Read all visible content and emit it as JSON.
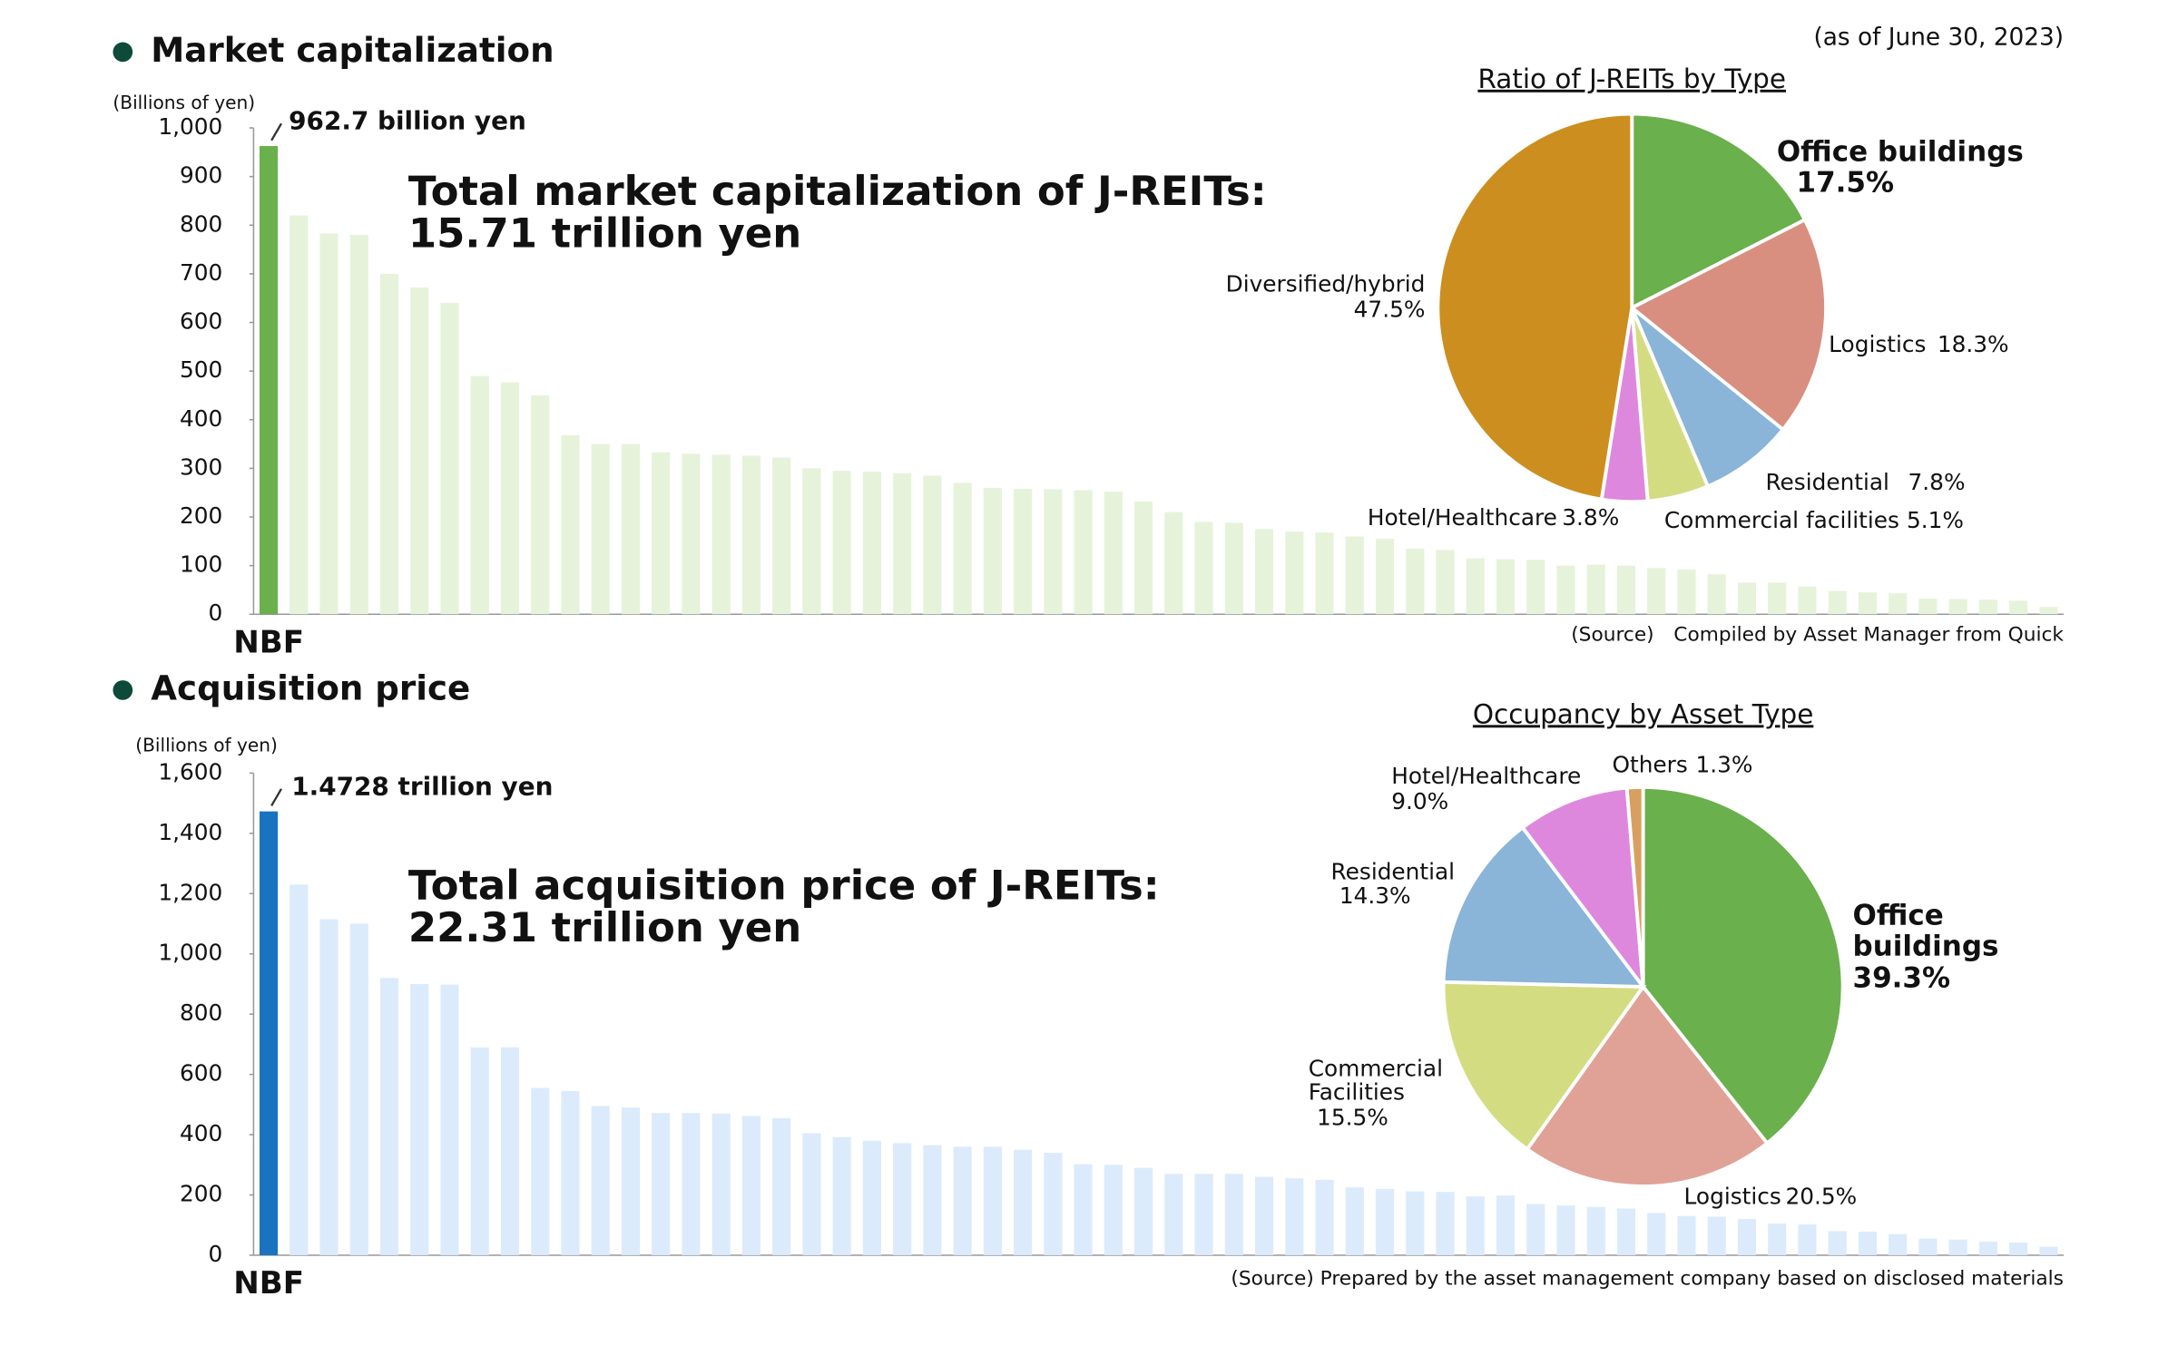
{
  "date": "(as of June 30, 2023)",
  "chart_data": [
    {
      "type": "bar",
      "title": "Market capitalization",
      "ylabel": "(Billions of yen)",
      "annotation": [
        "Total market capitalization of J-REITs:",
        "15.71 trillion yen"
      ],
      "source": "(Source)　Compiled by Asset Manager from Quick",
      "categories": [
        "NBF",
        null,
        null,
        null,
        null,
        null,
        null,
        null,
        null,
        null,
        null,
        null,
        null,
        null,
        null,
        null,
        null,
        null,
        null,
        null,
        null,
        null,
        null,
        null,
        null,
        null,
        null,
        null,
        null,
        null,
        null,
        null,
        null,
        null,
        null,
        null,
        null,
        null,
        null,
        null,
        null,
        null,
        null,
        null,
        null,
        null,
        null,
        null,
        null,
        null,
        null,
        null,
        null,
        null,
        null,
        null,
        null,
        null,
        null,
        null
      ],
      "values": [
        962.7,
        820,
        783,
        780,
        700,
        672,
        640,
        490,
        477,
        450,
        368,
        350,
        350,
        333,
        330,
        328,
        326,
        322,
        300,
        295,
        293,
        290,
        285,
        270,
        260,
        258,
        257,
        255,
        252,
        232,
        210,
        190,
        188,
        175,
        170,
        168,
        160,
        155,
        135,
        132,
        115,
        113,
        112,
        100,
        102,
        100,
        95,
        92,
        82,
        65,
        65,
        57,
        48,
        45,
        43,
        32,
        31,
        30,
        28,
        15
      ],
      "value_labels": [
        "962.7 billion yen",
        null,
        null,
        null,
        null,
        null,
        null,
        null,
        null,
        null,
        null,
        null,
        null,
        null,
        null,
        null,
        null,
        null,
        null,
        null,
        null,
        null,
        null,
        null,
        null,
        null,
        null,
        null,
        null,
        null,
        null,
        null,
        null,
        null,
        null,
        null,
        null,
        null,
        null,
        null,
        null,
        null,
        null,
        null,
        null,
        null,
        null,
        null,
        null,
        null,
        null,
        null,
        null,
        null,
        null,
        null,
        null,
        null,
        null,
        null
      ],
      "color": "#e6f3da",
      "highlight_color": "#6ab04c",
      "label_color": "#3d5e35",
      "ylim": [
        0,
        1000
      ],
      "yticks": [
        0,
        100,
        200,
        300,
        400,
        500,
        600,
        700,
        800,
        900,
        {
          "value": 1000,
          "label": "1,000"
        }
      ]
    },
    {
      "type": "pie",
      "title": "Ratio of J-REITs by Type",
      "categories": [
        "Office buildings",
        "Logistics",
        "Residential",
        "Commercial facilities",
        "Hotel/Healthcare",
        "Diversified/hybrid"
      ],
      "values": [
        17.5,
        18.3,
        7.8,
        5.1,
        3.8,
        47.5
      ],
      "value_labels": [
        "17.5%",
        "18.3%",
        "7.8%",
        "5.1%",
        "3.8%",
        "47.5%"
      ],
      "colors": [
        "#6ab04c",
        "#d98f7f",
        "#8ab4d8",
        "#d4dc82",
        "#dd88dd",
        "#cc8e1e"
      ]
    },
    {
      "type": "bar",
      "title": "Acquisition price",
      "ylabel": "(Billions of yen)",
      "annotation": [
        "Total acquisition price of J-REITs:",
        "22.31 trillion yen"
      ],
      "source": "(Source) Prepared by the asset management company based on disclosed materials",
      "categories": [
        "NBF",
        null,
        null,
        null,
        null,
        null,
        null,
        null,
        null,
        null,
        null,
        null,
        null,
        null,
        null,
        null,
        null,
        null,
        null,
        null,
        null,
        null,
        null,
        null,
        null,
        null,
        null,
        null,
        null,
        null,
        null,
        null,
        null,
        null,
        null,
        null,
        null,
        null,
        null,
        null,
        null,
        null,
        null,
        null,
        null,
        null,
        null,
        null,
        null,
        null,
        null,
        null,
        null,
        null,
        null,
        null,
        null,
        null,
        null,
        null
      ],
      "values": [
        1472.8,
        1230,
        1115,
        1100,
        920,
        900,
        898,
        690,
        690,
        555,
        545,
        495,
        490,
        472,
        472,
        470,
        462,
        455,
        405,
        392,
        380,
        372,
        365,
        360,
        360,
        350,
        340,
        302,
        300,
        290,
        270,
        270,
        270,
        260,
        255,
        250,
        225,
        220,
        212,
        210,
        195,
        198,
        170,
        165,
        160,
        155,
        140,
        130,
        128,
        120,
        105,
        102,
        80,
        78,
        70,
        55,
        52,
        45,
        42,
        28
      ],
      "value_labels": [
        "1.4728 trillion yen",
        null,
        null,
        null,
        null,
        null,
        null,
        null,
        null,
        null,
        null,
        null,
        null,
        null,
        null,
        null,
        null,
        null,
        null,
        null,
        null,
        null,
        null,
        null,
        null,
        null,
        null,
        null,
        null,
        null,
        null,
        null,
        null,
        null,
        null,
        null,
        null,
        null,
        null,
        null,
        null,
        null,
        null,
        null,
        null,
        null,
        null,
        null,
        null,
        null,
        null,
        null,
        null,
        null,
        null,
        null,
        null,
        null,
        null,
        null
      ],
      "color": "#dcebfb",
      "highlight_color": "#1a73c0",
      "label_color": "#3d5e35",
      "ylim": [
        0,
        1600
      ],
      "yticks": [
        0,
        200,
        400,
        600,
        800,
        {
          "value": 1000,
          "label": "1,000"
        },
        {
          "value": 1200,
          "label": "1,200"
        },
        {
          "value": 1400,
          "label": "1,400"
        },
        {
          "value": 1600,
          "label": "1,600"
        }
      ]
    },
    {
      "type": "pie",
      "title": "Occupancy by Asset Type",
      "categories": [
        "Office buildings",
        "Logistics",
        "Commercial Facilities",
        "Residential",
        "Hotel/Healthcare",
        "Others"
      ],
      "values": [
        39.3,
        20.5,
        15.5,
        14.3,
        9.0,
        1.3
      ],
      "value_labels": [
        "39.3%",
        "20.5%",
        "15.5%",
        "14.3%",
        "9.0%",
        "1.3%"
      ],
      "colors": [
        "#6ab04c",
        "#e0a296",
        "#d4dc82",
        "#8ab4d8",
        "#dd88dd",
        "#d8a060"
      ]
    }
  ]
}
